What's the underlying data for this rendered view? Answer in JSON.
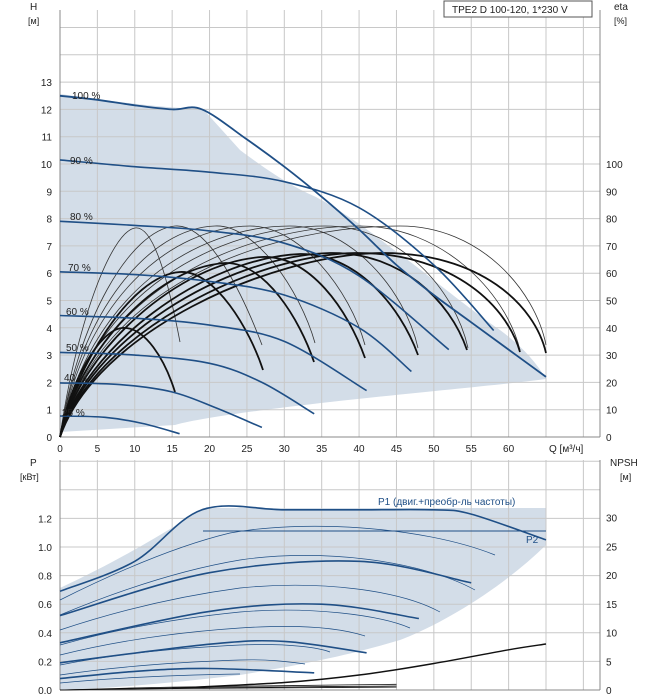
{
  "model_box": "TPE2 D 100-120, 1*230 V",
  "top_chart": {
    "y_left_label": "H",
    "y_left_unit": "[м]",
    "y_right_label": "eta",
    "y_right_unit": "[%]",
    "x_label": "Q [м³/ч]",
    "y_left_ticks": [
      "0",
      "1",
      "2",
      "3",
      "4",
      "5",
      "6",
      "7",
      "8",
      "9",
      "10",
      "11",
      "12",
      "13"
    ],
    "y_right_ticks": [
      "0",
      "10",
      "20",
      "30",
      "40",
      "50",
      "60",
      "70",
      "80",
      "90",
      "100"
    ],
    "x_ticks": [
      "0",
      "5",
      "10",
      "15",
      "20",
      "25",
      "30",
      "35",
      "40",
      "45",
      "50",
      "55",
      "60"
    ],
    "speed_labels": [
      "100 %",
      "90 %",
      "80 %",
      "70 %",
      "60 %",
      "50 %",
      "40 %",
      "25 %"
    ]
  },
  "bottom_chart": {
    "y_left_label": "P",
    "y_left_unit": "[кВт]",
    "y_right_label": "NPSH",
    "y_right_unit": "[м]",
    "y_left_ticks": [
      "0.0",
      "0.2",
      "0.4",
      "0.6",
      "0.8",
      "1.0",
      "1.2"
    ],
    "y_right_ticks": [
      "0",
      "5",
      "10",
      "15",
      "20",
      "25",
      "30"
    ],
    "p1_label": "P1 (двиг.+преобр-ль частоты)",
    "p2_label": "P2"
  },
  "colors": {
    "curve": "#1f4f86",
    "area": "#d3dde8",
    "eff": "#111111",
    "grid": "#c8c8c8"
  },
  "chart_data": [
    {
      "type": "line",
      "title": "TPE2 D 100-120, 1*230 V",
      "xlabel": "Q [м³/ч]",
      "ylabel": "H [м]",
      "y2label": "eta [%]",
      "xlim": [
        0,
        65
      ],
      "ylim": [
        0,
        14
      ],
      "y2lim": [
        0,
        140
      ],
      "series": [
        {
          "name": "100 %",
          "x": [
            0,
            5,
            10,
            15,
            19,
            25,
            30,
            35,
            40,
            45,
            50,
            55,
            60,
            65
          ],
          "y": [
            12.5,
            12.35,
            12.15,
            12.0,
            12.0,
            10.9,
            9.9,
            8.8,
            7.6,
            6.3,
            5.2,
            4.2,
            3.2,
            2.2
          ]
        },
        {
          "name": "90 %",
          "x": [
            0,
            10,
            20,
            30,
            40,
            50,
            58
          ],
          "y": [
            10.15,
            9.9,
            9.7,
            9.35,
            8.4,
            6.3,
            3.9
          ]
        },
        {
          "name": "80 %",
          "x": [
            0,
            10,
            20,
            30,
            40,
            52
          ],
          "y": [
            7.9,
            7.75,
            7.55,
            7.1,
            5.9,
            3.2
          ]
        },
        {
          "name": "70 %",
          "x": [
            0,
            10,
            20,
            30,
            40,
            47
          ],
          "y": [
            6.05,
            5.95,
            5.7,
            5.2,
            4.0,
            2.4
          ]
        },
        {
          "name": "60 %",
          "x": [
            0,
            10,
            20,
            30,
            41
          ],
          "y": [
            4.45,
            4.35,
            4.1,
            3.5,
            1.7
          ]
        },
        {
          "name": "50 %",
          "x": [
            0,
            10,
            20,
            27,
            34
          ],
          "y": [
            3.1,
            3.0,
            2.7,
            2.0,
            0.85
          ]
        },
        {
          "name": "40 %",
          "x": [
            0,
            8,
            15,
            21,
            27
          ],
          "y": [
            1.98,
            1.92,
            1.65,
            1.05,
            0.35
          ]
        },
        {
          "name": "25 %",
          "x": [
            0,
            6,
            11,
            16
          ],
          "y": [
            0.77,
            0.72,
            0.5,
            0.12
          ]
        }
      ],
      "efficiency": {
        "axis": "y2",
        "x": [
          0,
          5,
          10,
          15,
          20,
          25,
          30,
          35,
          40,
          45,
          50,
          55,
          60,
          65
        ],
        "y": [
          0,
          32,
          48,
          57,
          62,
          65,
          66,
          66,
          65,
          62,
          57,
          49,
          39,
          29
        ]
      }
    },
    {
      "type": "line",
      "xlabel": "Q [м³/ч]",
      "ylabel": "P [кВт]",
      "y2label": "NPSH [м]",
      "xlim": [
        0,
        65
      ],
      "ylim": [
        0,
        1.3
      ],
      "y2lim": [
        0,
        32
      ],
      "series": [
        {
          "name": "P1 (двиг.+преобр-ль частоты)",
          "x": [
            0,
            10,
            19,
            30,
            40,
            50,
            55,
            65
          ],
          "y": [
            0.69,
            0.9,
            1.26,
            1.26,
            1.26,
            1.26,
            1.23,
            1.05
          ]
        },
        {
          "name": "P2",
          "x": [
            0,
            19,
            40,
            60,
            65
          ],
          "y": [
            0.6,
            1.1,
            1.1,
            1.1,
            1.1
          ]
        },
        {
          "name": "90 %",
          "x": [
            0,
            20,
            40,
            55
          ],
          "y": [
            0.52,
            0.82,
            0.9,
            0.75
          ]
        },
        {
          "name": "70 %",
          "x": [
            0,
            20,
            35,
            48
          ],
          "y": [
            0.33,
            0.55,
            0.6,
            0.5
          ]
        },
        {
          "name": "50 %",
          "x": [
            0,
            20,
            30,
            41
          ],
          "y": [
            0.19,
            0.32,
            0.34,
            0.26
          ]
        },
        {
          "name": "25 %",
          "x": [
            0,
            10,
            20,
            34
          ],
          "y": [
            0.08,
            0.13,
            0.15,
            0.12
          ]
        }
      ],
      "npsh": {
        "axis": "y2",
        "x": [
          15,
          30,
          40,
          50,
          60,
          65
        ],
        "y": [
          0.3,
          1.3,
          2.6,
          4.6,
          7.0,
          8.0
        ]
      }
    }
  ]
}
